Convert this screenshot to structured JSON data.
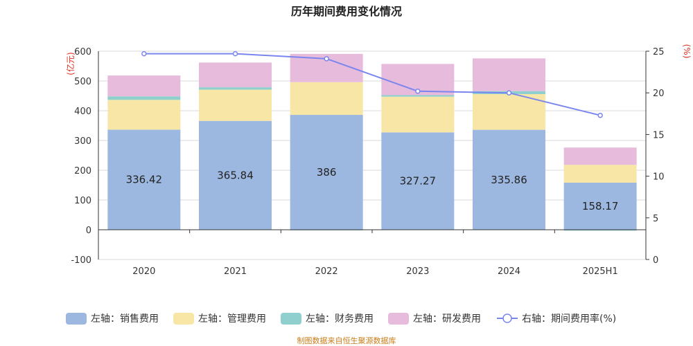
{
  "title": "历年期间费用变化情况",
  "y_left_unit": "(亿元)",
  "y_right_unit": "(%)",
  "source": "制图数据来自恒生聚源数据库",
  "colors": {
    "sales": "#9db8e0",
    "admin": "#f8e6a6",
    "finance": "#8fd0cf",
    "rnd": "#e6bbdc",
    "rate": "#7a86ee"
  },
  "chart_data": {
    "type": "bar",
    "stacked": true,
    "title": "历年期间费用变化情况",
    "categories": [
      "2020",
      "2021",
      "2022",
      "2023",
      "2024",
      "2025H1"
    ],
    "y_left": {
      "label": "(亿元)",
      "min": -100,
      "max": 600,
      "ticks": [
        -100,
        0,
        100,
        200,
        300,
        400,
        500,
        600
      ]
    },
    "y_right": {
      "label": "(%)",
      "min": 0,
      "max": 25,
      "ticks": [
        0,
        5,
        10,
        15,
        20,
        25
      ]
    },
    "series": [
      {
        "key": "sales",
        "name": "左轴：销售费用",
        "axis": "left",
        "values": [
          336.42,
          365.84,
          386,
          327.27,
          335.86,
          158.17
        ],
        "show_labels": true
      },
      {
        "key": "admin",
        "name": "左轴：管理费用",
        "axis": "left",
        "values": [
          100,
          105,
          110,
          120,
          120,
          60
        ]
      },
      {
        "key": "finance",
        "name": "左轴：财务费用",
        "axis": "left",
        "values": [
          12,
          8,
          -2,
          5,
          10,
          -3
        ]
      },
      {
        "key": "rnd",
        "name": "左轴：研发费用",
        "axis": "left",
        "values": [
          70,
          83,
          95,
          105,
          110,
          58
        ]
      }
    ],
    "line": {
      "key": "rate",
      "name": "右轴：期间费用率(%)",
      "axis": "right",
      "values": [
        24.7,
        24.7,
        24.1,
        20.2,
        20.0,
        17.3
      ]
    },
    "legend_position": "bottom"
  }
}
